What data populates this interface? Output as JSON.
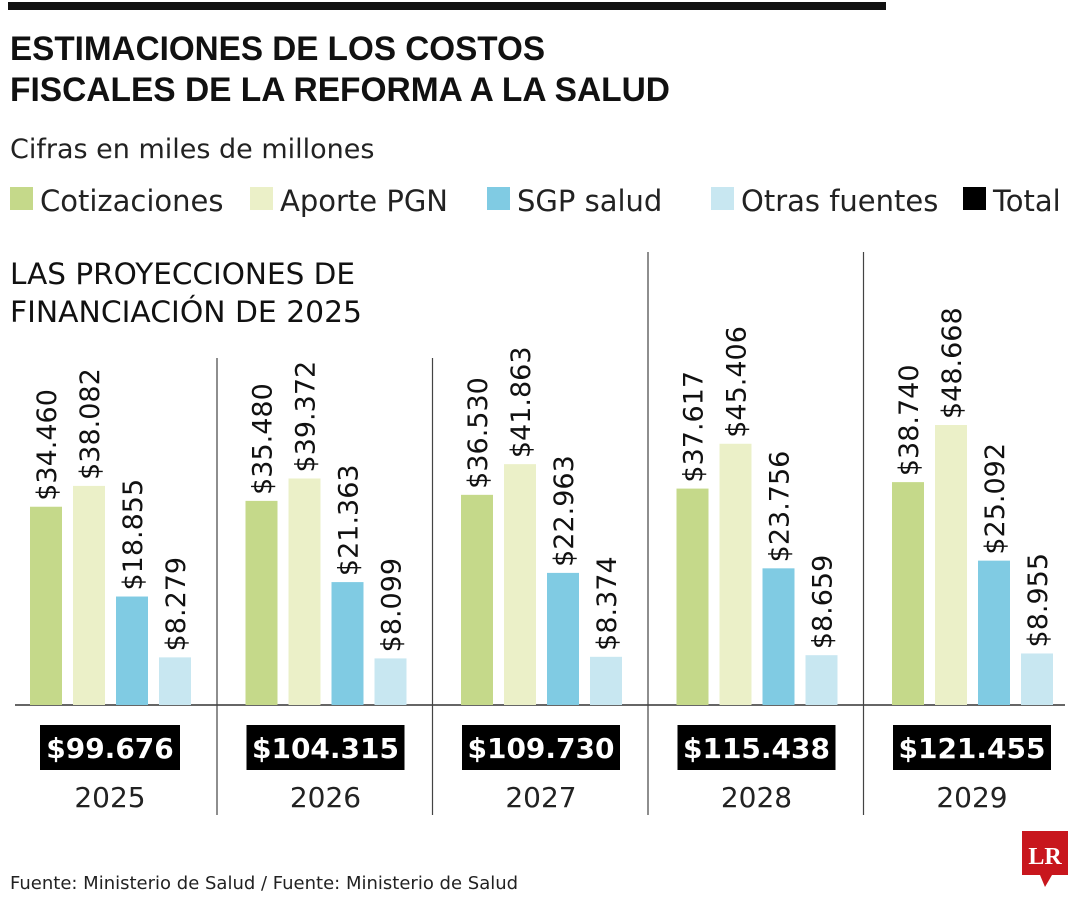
{
  "title_line1": "ESTIMACIONES DE LOS COSTOS",
  "title_line2": "FISCALES DE LA REFORMA A LA SALUD",
  "subtitle": "Cifras en miles de millones",
  "section_line1": "LAS PROYECCIONES DE",
  "section_line2": "FINANCIACIÓN DE 2025",
  "source": "Fuente: Ministerio de Salud  / Fuente: Ministerio de Salud",
  "logo_text": "LR",
  "colors": {
    "cotizaciones": "#c5d98a",
    "aporte": "#ebf0c8",
    "sgp": "#80cbe3",
    "otras": "#c8e7f1",
    "total": "#000000",
    "logo": "#c8161d"
  },
  "chart_data": {
    "type": "bar",
    "title": "ESTIMACIONES DE LOS COSTOS FISCALES DE LA REFORMA A LA SALUD",
    "subtitle": "Cifras en miles de millones",
    "categories": [
      "2025",
      "2026",
      "2027",
      "2028",
      "2029"
    ],
    "legend": [
      {
        "name": "Cotizaciones",
        "color": "#c5d98a"
      },
      {
        "name": "Aporte PGN",
        "color": "#ebf0c8"
      },
      {
        "name": "SGP salud",
        "color": "#80cbe3"
      },
      {
        "name": "Otras fuentes",
        "color": "#c8e7f1"
      },
      {
        "name": "Total",
        "color": "#000000"
      }
    ],
    "legend_placement": "top",
    "series": [
      {
        "name": "Cotizaciones",
        "values": [
          34460,
          35480,
          36530,
          37617,
          38740
        ],
        "labels": [
          "$34.460",
          "$35.480",
          "$36.530",
          "$37.617",
          "$38.740"
        ]
      },
      {
        "name": "Aporte PGN",
        "values": [
          38082,
          39372,
          41863,
          45406,
          48668
        ],
        "labels": [
          "$38.082",
          "$39.372",
          "$41.863",
          "$45.406",
          "$48.668"
        ]
      },
      {
        "name": "SGP salud",
        "values": [
          18855,
          21363,
          22963,
          23756,
          25092
        ],
        "labels": [
          "$18.855",
          "$21.363",
          "$22.963",
          "$23.756",
          "$25.092"
        ]
      },
      {
        "name": "Otras fuentes",
        "values": [
          8279,
          8099,
          8374,
          8659,
          8955
        ],
        "labels": [
          "$8.279",
          "$8.099",
          "$8.374",
          "$8.659",
          "$8.955"
        ]
      }
    ],
    "totals": {
      "name": "Total",
      "values": [
        99676,
        104315,
        109730,
        115438,
        121455
      ],
      "labels": [
        "$99.676",
        "$104.315",
        "$109.730",
        "$115.438",
        "$121.455"
      ]
    },
    "ylim": [
      0,
      50000
    ],
    "grid": false
  }
}
